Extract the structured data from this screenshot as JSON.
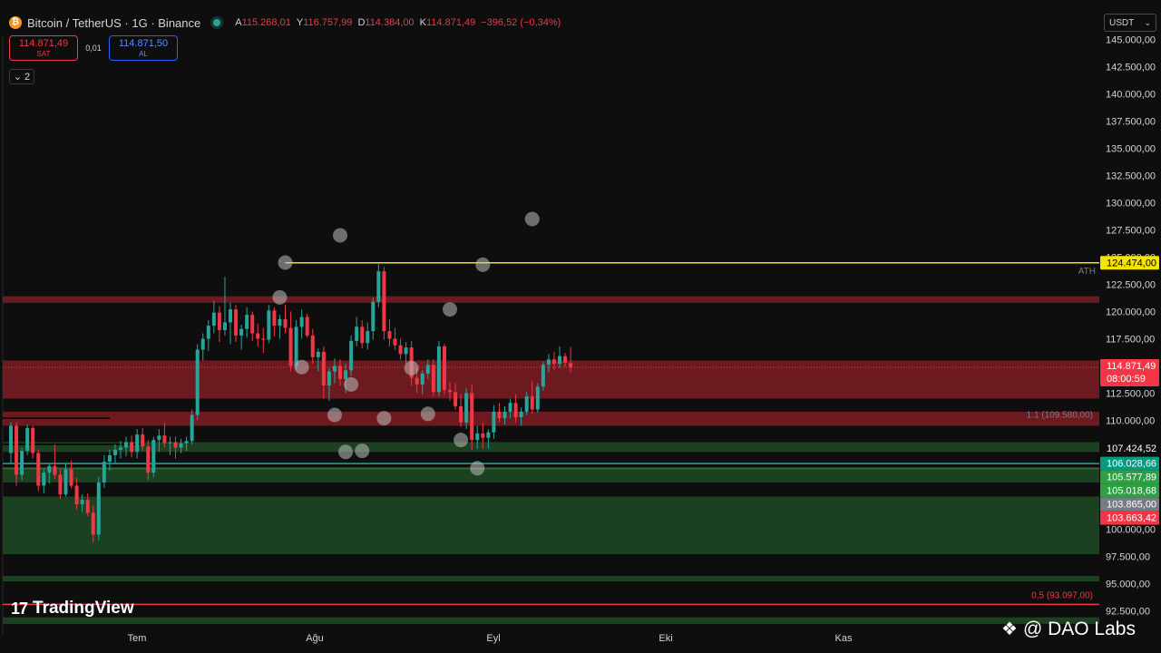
{
  "header": {
    "symbol_title": "Bitcoin / TetherUS · 1G · Binance",
    "ohlc": [
      {
        "k": "A",
        "v": "115.268,01"
      },
      {
        "k": "Y",
        "v": "116.757,99"
      },
      {
        "k": "D",
        "v": "114.384,00"
      },
      {
        "k": "K",
        "v": "114.871,49"
      },
      {
        "k": "",
        "v": "−396,52 (−0,34%)"
      }
    ],
    "sell_price": "114.871,49",
    "sell_label": "SAT",
    "spread": "0,01",
    "buy_price": "114.871,50",
    "buy_label": "AL",
    "collapse_count": "2",
    "currency": "USDT"
  },
  "branding": {
    "tradingview": "TradingView",
    "watermark": "@ DAO Labs"
  },
  "colors": {
    "bull": "#26a69a",
    "bear": "#f23645",
    "ath_line": "#f5e400",
    "resistance_zone": "#8c1f25",
    "support_zone": "#1f4a23"
  },
  "chart_data": {
    "type": "candlestick",
    "price_axis": {
      "ylim": [
        91300,
        146000
      ],
      "ticks": [
        "145.000,00",
        "142.500,00",
        "140.000,00",
        "137.500,00",
        "135.000,00",
        "132.500,00",
        "130.000,00",
        "127.500,00",
        "125.000,00",
        "122.500,00",
        "120.000,00",
        "117.500,00",
        "115.000,00",
        "112.500,00",
        "110.000,00",
        "107.500,00",
        "105.000,00",
        "102.500,00",
        "100.000,00",
        "97.500,00",
        "95.000,00",
        "92.500,00"
      ]
    },
    "time_axis": [
      "Tem",
      "Ağu",
      "Eyl",
      "Eki",
      "Kas"
    ],
    "price_labels": [
      {
        "text": "124.474,00",
        "price": 124474,
        "style": "yellow"
      },
      {
        "text": "114.871,49",
        "sub": "08:00:59",
        "price": 114871,
        "style": "red"
      },
      {
        "text": "107.424,52",
        "price": 107424,
        "style": "dark"
      },
      {
        "text": "106.028,66",
        "price": 106029,
        "style": "teal"
      },
      {
        "text": "105.577,89",
        "price": 105578,
        "style": "green"
      },
      {
        "text": "105.018,68",
        "price": 105019,
        "style": "green"
      },
      {
        "text": "103.865,00",
        "price": 103865,
        "style": "gray"
      },
      {
        "text": "103.663,42",
        "price": 103663,
        "style": "red"
      }
    ],
    "annotations": [
      {
        "text": "ATH",
        "price": 123800
      },
      {
        "text": "1.1 (109.580,00)",
        "price": 110600
      },
      {
        "text": "0,5 (93.097,00)",
        "price": 94000
      }
    ],
    "zones": [
      {
        "kind": "resistance",
        "from": 120800,
        "to": 121400
      },
      {
        "kind": "resistance",
        "from": 112000,
        "to": 115500
      },
      {
        "kind": "resistance",
        "from": 109500,
        "to": 110800
      },
      {
        "kind": "support",
        "from": 107100,
        "to": 108000
      },
      {
        "kind": "support",
        "from": 104300,
        "to": 105700
      },
      {
        "kind": "support",
        "from": 97700,
        "to": 103000
      },
      {
        "kind": "support",
        "from": 95200,
        "to": 95700
      },
      {
        "kind": "support",
        "from": 91300,
        "to": 91900
      }
    ],
    "lines": [
      {
        "price": 124474,
        "color": "#f5e400",
        "x_start_candle": 50
      },
      {
        "price": 93097,
        "color": "#f23645",
        "x_start_candle": 0
      },
      {
        "price": 106029,
        "color": "#26a69a",
        "x_start_candle": 0
      },
      {
        "price": 105578,
        "color": "#2e6b34",
        "x_start_candle": 0
      },
      {
        "price": 114871,
        "color": "#f23645",
        "dotted": true,
        "x_start_candle": 0
      },
      {
        "price": 110200,
        "color": "#000000",
        "x_start_candle": 0,
        "x_end_candle": 18
      },
      {
        "price": 107800,
        "color": "#000000",
        "x_start_candle": 0,
        "x_end_candle": 24
      }
    ],
    "markers": [
      {
        "candle": 60,
        "price": 127000
      },
      {
        "candle": 50,
        "price": 124500
      },
      {
        "candle": 49,
        "price": 121300
      },
      {
        "candle": 86,
        "price": 124300
      },
      {
        "candle": 95,
        "price": 128500
      },
      {
        "candle": 80,
        "price": 120200
      },
      {
        "candle": 53,
        "price": 114900
      },
      {
        "candle": 62,
        "price": 113300
      },
      {
        "candle": 59,
        "price": 110500
      },
      {
        "candle": 73,
        "price": 114800
      },
      {
        "candle": 76,
        "price": 110600
      },
      {
        "candle": 82,
        "price": 108200
      },
      {
        "candle": 68,
        "price": 110200
      },
      {
        "candle": 61,
        "price": 107100
      },
      {
        "candle": 64,
        "price": 107200
      },
      {
        "candle": 85,
        "price": 105600
      }
    ],
    "candles": [
      [
        107000,
        109800,
        106000,
        109500
      ],
      [
        109500,
        109800,
        104000,
        105000
      ],
      [
        105000,
        107500,
        104500,
        107200
      ],
      [
        107200,
        109600,
        106800,
        109300
      ],
      [
        109300,
        109500,
        106500,
        107000
      ],
      [
        107000,
        107300,
        103500,
        104000
      ],
      [
        104000,
        105500,
        103300,
        105200
      ],
      [
        105200,
        106000,
        104200,
        105800
      ],
      [
        105800,
        107800,
        104600,
        105000
      ],
      [
        105000,
        105500,
        102800,
        103200
      ],
      [
        103200,
        106000,
        103000,
        105500
      ],
      [
        105500,
        106300,
        103800,
        104000
      ],
      [
        104000,
        104700,
        101800,
        102300
      ],
      [
        102300,
        103200,
        101600,
        102700
      ],
      [
        102700,
        103300,
        101200,
        101500
      ],
      [
        101500,
        102200,
        98800,
        99500
      ],
      [
        99500,
        104800,
        99000,
        104300
      ],
      [
        104300,
        106800,
        103800,
        106200
      ],
      [
        106200,
        107300,
        105400,
        106800
      ],
      [
        106800,
        107800,
        106000,
        107300
      ],
      [
        107300,
        108100,
        106500,
        107500
      ],
      [
        107500,
        108500,
        106700,
        108000
      ],
      [
        108000,
        108600,
        106600,
        107100
      ],
      [
        107100,
        109200,
        106500,
        108700
      ],
      [
        108700,
        109300,
        107200,
        107600
      ],
      [
        107600,
        108200,
        104500,
        105200
      ],
      [
        105200,
        108500,
        104800,
        108200
      ],
      [
        108200,
        109200,
        107100,
        108600
      ],
      [
        108600,
        109800,
        107500,
        107900
      ],
      [
        107900,
        108500,
        106800,
        108000
      ],
      [
        108000,
        108500,
        106500,
        107500
      ],
      [
        107500,
        108300,
        107000,
        107900
      ],
      [
        107900,
        108500,
        107200,
        108100
      ],
      [
        108100,
        111000,
        107800,
        110500
      ],
      [
        110500,
        117000,
        110000,
        116500
      ],
      [
        116500,
        118000,
        115500,
        117500
      ],
      [
        117500,
        119200,
        116400,
        118700
      ],
      [
        118700,
        121000,
        118000,
        119900
      ],
      [
        119900,
        120500,
        117200,
        118300
      ],
      [
        118300,
        123200,
        117800,
        119000
      ],
      [
        119000,
        120800,
        117000,
        120200
      ],
      [
        120200,
        120600,
        117200,
        117800
      ],
      [
        117800,
        118800,
        116500,
        118400
      ],
      [
        118400,
        120400,
        117600,
        119700
      ],
      [
        119700,
        120000,
        117300,
        118000
      ],
      [
        118000,
        118900,
        116800,
        117500
      ],
      [
        117500,
        118500,
        116200,
        117400
      ],
      [
        117400,
        120600,
        117100,
        120100
      ],
      [
        120100,
        120400,
        117700,
        118700
      ],
      [
        118700,
        119700,
        117500,
        119300
      ],
      [
        119300,
        120600,
        118000,
        118500
      ],
      [
        118500,
        120000,
        114500,
        115000
      ],
      [
        115000,
        119200,
        114600,
        118600
      ],
      [
        118600,
        120200,
        117500,
        119500
      ],
      [
        119500,
        119800,
        117600,
        117800
      ],
      [
        117800,
        118400,
        115200,
        115800
      ],
      [
        115800,
        116600,
        114500,
        116300
      ],
      [
        116300,
        116800,
        112000,
        113200
      ],
      [
        113200,
        114800,
        111800,
        114500
      ],
      [
        114500,
        115700,
        113400,
        115000
      ],
      [
        115000,
        115600,
        113200,
        113800
      ],
      [
        113800,
        115200,
        112500,
        114600
      ],
      [
        114600,
        117800,
        114100,
        117300
      ],
      [
        117300,
        119500,
        116800,
        118600
      ],
      [
        118600,
        119200,
        116600,
        117100
      ],
      [
        117100,
        119000,
        116500,
        118200
      ],
      [
        118200,
        121300,
        117400,
        120900
      ],
      [
        120900,
        124474,
        120400,
        123700
      ],
      [
        123700,
        124100,
        117400,
        118200
      ],
      [
        118200,
        119300,
        116800,
        117500
      ],
      [
        117500,
        118500,
        116500,
        116900
      ],
      [
        116900,
        117500,
        115600,
        116100
      ],
      [
        116100,
        117200,
        115200,
        116700
      ],
      [
        116700,
        117300,
        113200,
        113900
      ],
      [
        113900,
        114800,
        112500,
        113300
      ],
      [
        113300,
        114600,
        112400,
        114300
      ],
      [
        114300,
        115600,
        113800,
        115100
      ],
      [
        115100,
        115600,
        112200,
        112600
      ],
      [
        112600,
        117300,
        112200,
        116800
      ],
      [
        116800,
        117000,
        112400,
        112800
      ],
      [
        112800,
        113500,
        111800,
        112600
      ],
      [
        112600,
        113500,
        111000,
        111300
      ],
      [
        111300,
        112400,
        109400,
        109800
      ],
      [
        109800,
        113000,
        109200,
        112500
      ],
      [
        112500,
        113300,
        107300,
        108200
      ],
      [
        108200,
        109500,
        107400,
        108800
      ],
      [
        108800,
        109800,
        107400,
        108400
      ],
      [
        108400,
        109200,
        107400,
        108900
      ],
      [
        108900,
        111400,
        108300,
        110800
      ],
      [
        110800,
        111600,
        109800,
        110200
      ],
      [
        110200,
        111300,
        109600,
        110800
      ],
      [
        110800,
        112000,
        110200,
        111600
      ],
      [
        111600,
        112400,
        109800,
        110300
      ],
      [
        110300,
        111200,
        109500,
        110800
      ],
      [
        110800,
        112600,
        110500,
        112200
      ],
      [
        112200,
        113600,
        110600,
        111000
      ],
      [
        111000,
        113400,
        110700,
        113100
      ],
      [
        113100,
        115400,
        112700,
        115100
      ],
      [
        115100,
        116100,
        114400,
        115600
      ],
      [
        115600,
        116300,
        114600,
        115200
      ],
      [
        115200,
        116800,
        114800,
        115900
      ],
      [
        115900,
        116200,
        114900,
        115300
      ],
      [
        115268,
        116758,
        114384,
        114871
      ]
    ]
  }
}
